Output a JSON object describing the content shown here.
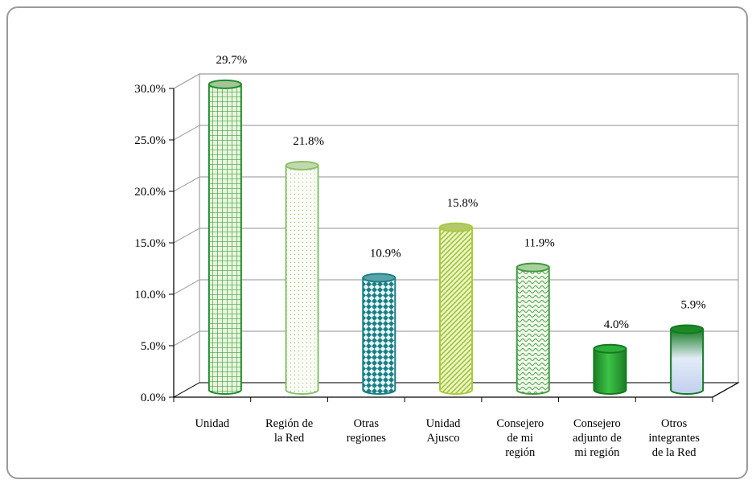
{
  "chart_data": {
    "type": "bar",
    "style": "3d-cylinder",
    "categories": [
      [
        "Unidad"
      ],
      [
        "Región de",
        "la Red"
      ],
      [
        "Otras",
        "regiones"
      ],
      [
        "Unidad",
        "Ajusco"
      ],
      [
        "Consejero",
        "de mi",
        "región"
      ],
      [
        "Consejero",
        "adjunto de",
        "mi región"
      ],
      [
        "Otros",
        "integrantes",
        "de la Red"
      ]
    ],
    "values": [
      29.7,
      21.8,
      10.9,
      15.8,
      11.9,
      4.0,
      5.9
    ],
    "data_labels": [
      "29.7%",
      "21.8%",
      "10.9%",
      "15.8%",
      "11.9%",
      "4.0%",
      "5.9%"
    ],
    "y_ticks": [
      "0.0%",
      "5.0%",
      "10.0%",
      "15.0%",
      "20.0%",
      "25.0%",
      "30.0%"
    ],
    "ylim": [
      0,
      30
    ],
    "grid": true,
    "legend": "none",
    "colors": {
      "grid": "#a6a6a6",
      "wall": "#ffffff",
      "bar_green_dark": "#1f8f2a",
      "bar_green_light": "#c9e88a",
      "bar_teal": "#1a7f86",
      "bar_lime": "#a7cc3a",
      "bar_lavender": "#c9d4f2"
    }
  }
}
